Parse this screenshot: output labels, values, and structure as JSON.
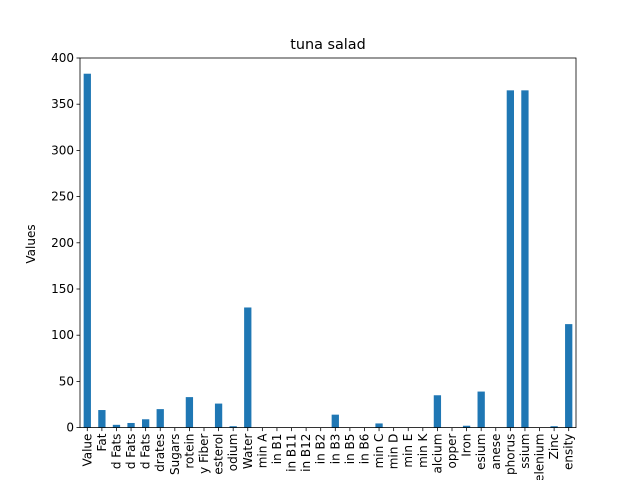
{
  "chart_data": {
    "type": "bar",
    "title": "tuna salad",
    "xlabel": "",
    "ylabel": "Values",
    "ylim": [
      0,
      400
    ],
    "yticks": [
      0,
      50,
      100,
      150,
      200,
      250,
      300,
      350,
      400
    ],
    "bar_color": "#1f77b4",
    "categories": [
      "Value",
      "Fat",
      "d Fats",
      "d Fats",
      "d Fats",
      "drates",
      "Sugars",
      "rotein",
      "y Fiber",
      "esterol",
      "odium",
      "Water",
      "min A",
      "in B1",
      "in B11",
      "in B12",
      "in B2",
      "in B3",
      "in B5",
      "in B6",
      "min C",
      "min D",
      "min E",
      "min K",
      "alcium",
      "opper",
      "Iron",
      "esium",
      "anese",
      "phorus",
      "ssium",
      "elenium",
      "Zinc",
      "ensity"
    ],
    "values": [
      383,
      19,
      3,
      5,
      9,
      20,
      0,
      33,
      0,
      26,
      1.5,
      130,
      0,
      0,
      0,
      0,
      0,
      14,
      0,
      0,
      4.5,
      0,
      0,
      0,
      35,
      0,
      2,
      39,
      0,
      365,
      365,
      0,
      1.5,
      112
    ]
  }
}
